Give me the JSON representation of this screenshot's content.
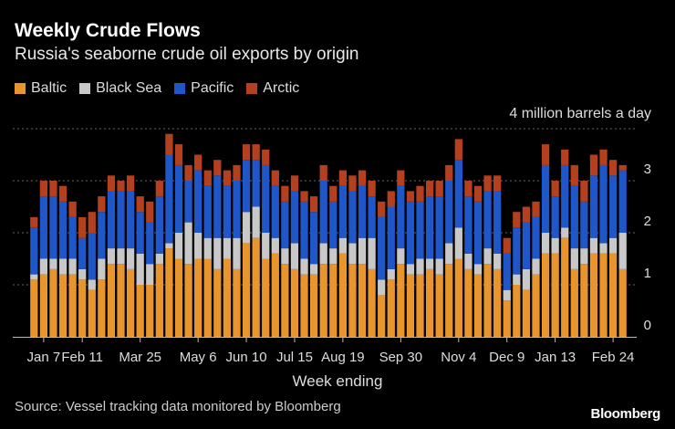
{
  "title": "Weekly Crude Flows",
  "subtitle": "Russia's seaborne crude oil exports by origin",
  "unit_label": "4 million barrels a day",
  "source": "Source: Vessel tracking data monitored by Bloomberg",
  "brand": "Bloomberg",
  "colors": {
    "Baltic": "#e8952d",
    "Black Sea": "#c8c8c8",
    "Pacific": "#1f56c8",
    "Arctic": "#b5401f"
  },
  "chart_data": {
    "type": "bar",
    "stacked": true,
    "xlabel": "Week ending",
    "ylabel": "",
    "ylim": [
      0,
      4
    ],
    "yticks": [
      0,
      1,
      2,
      3
    ],
    "xtick_labels": [
      {
        "index": 1,
        "label": "Jan 7"
      },
      {
        "index": 5,
        "label": "Feb 11"
      },
      {
        "index": 11,
        "label": "Mar 25"
      },
      {
        "index": 17,
        "label": "May 6"
      },
      {
        "index": 22,
        "label": "Jun 10"
      },
      {
        "index": 27,
        "label": "Jul 15"
      },
      {
        "index": 32,
        "label": "Aug 19"
      },
      {
        "index": 38,
        "label": "Sep 30"
      },
      {
        "index": 44,
        "label": "Nov 4"
      },
      {
        "index": 49,
        "label": "Dec 9"
      },
      {
        "index": 54,
        "label": "Jan 13"
      },
      {
        "index": 60,
        "label": "Feb 24"
      }
    ],
    "series": [
      {
        "name": "Baltic",
        "values": [
          1.1,
          1.2,
          1.3,
          1.2,
          1.2,
          1.1,
          0.9,
          1.1,
          1.4,
          1.4,
          1.3,
          1.0,
          1.0,
          1.4,
          1.7,
          1.5,
          1.4,
          1.5,
          1.5,
          1.3,
          1.5,
          1.3,
          1.8,
          1.9,
          1.5,
          1.6,
          1.4,
          1.3,
          1.2,
          1.2,
          1.4,
          1.4,
          1.6,
          1.4,
          1.4,
          1.3,
          0.8,
          1.1,
          1.4,
          1.2,
          1.2,
          1.3,
          1.2,
          1.4,
          1.5,
          1.3,
          1.2,
          1.4,
          1.3,
          0.7,
          1.0,
          0.9,
          1.2,
          1.6,
          1.6,
          1.9,
          1.3,
          1.4,
          1.6,
          1.6,
          1.6,
          1.3
        ]
      },
      {
        "name": "Black Sea",
        "values": [
          0.1,
          0.3,
          0.2,
          0.3,
          0.3,
          0.2,
          0.2,
          0.4,
          0.3,
          0.3,
          0.4,
          0.6,
          0.4,
          0.2,
          0.1,
          0.5,
          0.8,
          0.5,
          0.4,
          0.6,
          0.4,
          0.6,
          0.6,
          0.6,
          0.5,
          0.3,
          0.3,
          0.5,
          0.3,
          0.2,
          0.4,
          0.3,
          0.3,
          0.4,
          0.5,
          0.6,
          0.3,
          0.2,
          0.3,
          0.2,
          0.3,
          0.2,
          0.3,
          0.4,
          0.6,
          0.3,
          0.2,
          0.3,
          0.3,
          0.2,
          0.2,
          0.4,
          0.3,
          0.4,
          0.3,
          0.2,
          0.4,
          0.3,
          0.3,
          0.2,
          0.3,
          0.7
        ]
      },
      {
        "name": "Pacific",
        "values": [
          0.9,
          1.2,
          1.2,
          1.1,
          0.8,
          0.6,
          0.9,
          0.9,
          1.1,
          1.1,
          1.1,
          0.8,
          0.8,
          1.1,
          1.7,
          1.3,
          0.8,
          1.2,
          1.0,
          1.2,
          1.0,
          1.1,
          1.0,
          0.9,
          1.3,
          1.0,
          0.9,
          1.0,
          1.1,
          1.0,
          1.2,
          0.9,
          1.0,
          1.0,
          1.0,
          0.8,
          1.2,
          1.2,
          1.2,
          1.2,
          1.1,
          1.2,
          1.2,
          1.2,
          1.3,
          1.1,
          1.2,
          1.1,
          1.2,
          0.7,
          0.9,
          0.9,
          0.8,
          1.3,
          0.8,
          1.2,
          1.2,
          0.9,
          1.2,
          1.5,
          1.2,
          1.2
        ]
      },
      {
        "name": "Arctic",
        "values": [
          0.2,
          0.3,
          0.3,
          0.3,
          0.3,
          0.4,
          0.4,
          0.3,
          0.3,
          0.2,
          0.3,
          0.3,
          0.4,
          0.3,
          0.4,
          0.4,
          0.3,
          0.3,
          0.3,
          0.3,
          0.3,
          0.3,
          0.3,
          0.3,
          0.3,
          0.3,
          0.3,
          0.3,
          0.2,
          0.3,
          0.3,
          0.3,
          0.3,
          0.3,
          0.3,
          0.3,
          0.3,
          0.3,
          0.3,
          0.2,
          0.3,
          0.3,
          0.3,
          0.3,
          0.4,
          0.3,
          0.3,
          0.3,
          0.3,
          0.3,
          0.3,
          0.3,
          0.3,
          0.4,
          0.3,
          0.3,
          0.4,
          0.4,
          0.4,
          0.3,
          0.3,
          0.1
        ]
      }
    ]
  }
}
